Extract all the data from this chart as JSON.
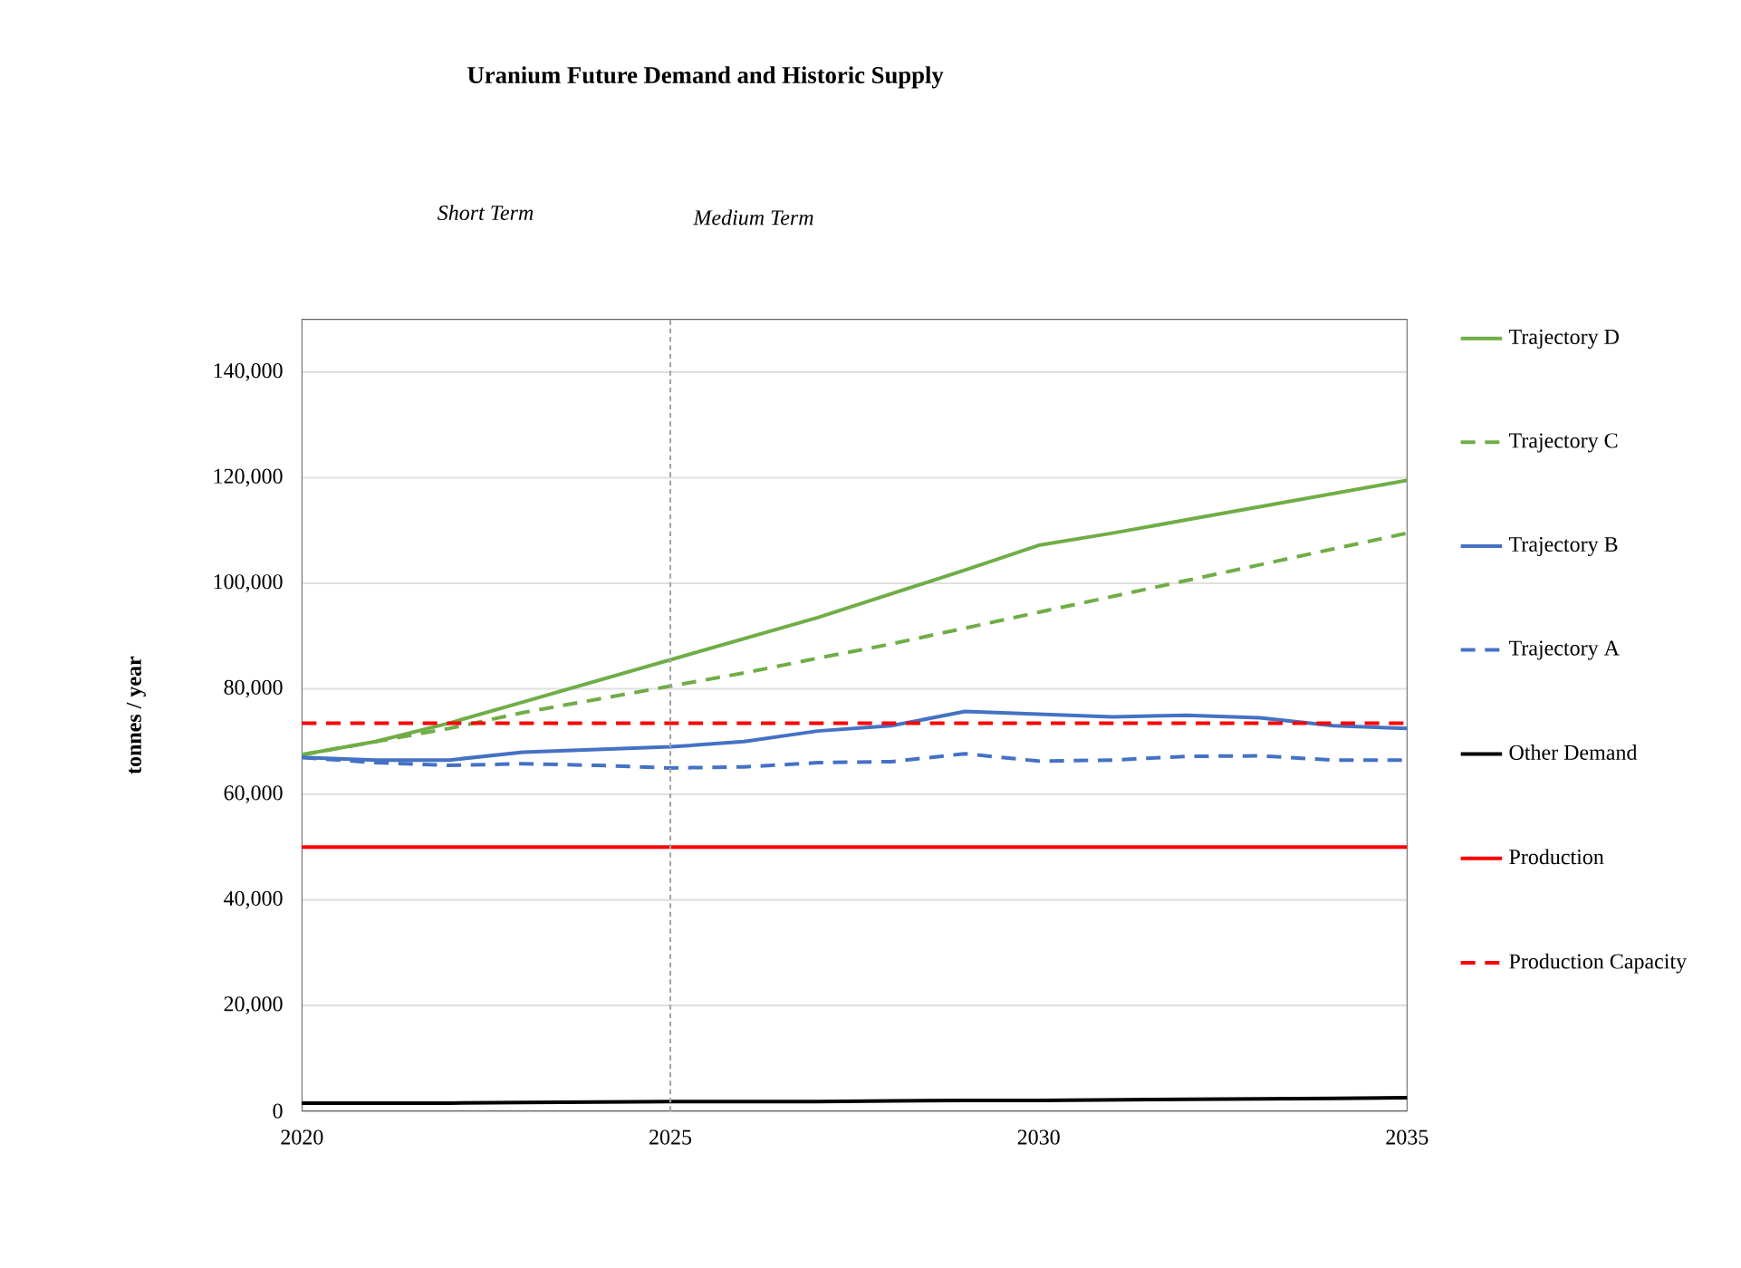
{
  "chart_data": {
    "type": "line",
    "title": "Uranium Future Demand and Historic Supply",
    "ylabel": "tonnes / year",
    "annotations": [
      "Short Term",
      "Medium Term"
    ],
    "x": [
      2020,
      2021,
      2022,
      2023,
      2024,
      2025,
      2026,
      2027,
      2028,
      2029,
      2030,
      2031,
      2032,
      2033,
      2034,
      2035
    ],
    "series": [
      {
        "name": "Trajectory D",
        "color": "#70ad47",
        "line_style": "solid",
        "values": [
          67500,
          70000,
          73500,
          77500,
          81500,
          85500,
          89500,
          93500,
          98000,
          102500,
          107200,
          109500,
          112000,
          114500,
          117000,
          119500
        ]
      },
      {
        "name": "Trajectory C",
        "color": "#70ad47",
        "line_style": "dashed",
        "values": [
          67500,
          70000,
          72500,
          75500,
          78000,
          80500,
          83000,
          85800,
          88500,
          91500,
          94500,
          97500,
          100500,
          103500,
          106500,
          109500
        ]
      },
      {
        "name": "Trajectory B",
        "color": "#4472c4",
        "line_style": "solid",
        "values": [
          67000,
          66500,
          66500,
          68000,
          68500,
          69000,
          70000,
          72000,
          73000,
          75700,
          75200,
          74700,
          75000,
          74500,
          73000,
          72500
        ]
      },
      {
        "name": "Trajectory A",
        "color": "#4472c4",
        "line_style": "dashed",
        "values": [
          67000,
          66000,
          65500,
          65800,
          65500,
          65000,
          65200,
          66000,
          66200,
          67700,
          66300,
          66500,
          67200,
          67300,
          66500,
          66500
        ]
      },
      {
        "name": "Other Demand",
        "color": "#000000",
        "line_style": "solid",
        "values": [
          1500,
          1500,
          1500,
          1600,
          1700,
          1800,
          1800,
          1800,
          1900,
          2000,
          2000,
          2100,
          2200,
          2300,
          2400,
          2500
        ]
      },
      {
        "name": "Production",
        "color": "#ff0000",
        "line_style": "solid",
        "values": [
          50000,
          50000,
          50000,
          50000,
          50000,
          50000,
          50000,
          50000,
          50000,
          50000,
          50000,
          50000,
          50000,
          50000,
          50000,
          50000
        ]
      },
      {
        "name": "Production Capacity",
        "color": "#ff0000",
        "line_style": "dashed",
        "values": [
          73500,
          73500,
          73500,
          73500,
          73500,
          73500,
          73500,
          73500,
          73500,
          73500,
          73500,
          73500,
          73500,
          73500,
          73500,
          73500
        ]
      }
    ],
    "xlim": [
      2020,
      2035
    ],
    "xticks": [
      2020,
      2025,
      2030,
      2035
    ],
    "ylim": [
      0,
      150000
    ],
    "yticks": [
      {
        "value": 0,
        "label": "0"
      },
      {
        "value": 20000,
        "label": "20,000"
      },
      {
        "value": 40000,
        "label": "40,000"
      },
      {
        "value": 60000,
        "label": "60,000"
      },
      {
        "value": 80000,
        "label": "80,000"
      },
      {
        "value": 100000,
        "label": "100,000"
      },
      {
        "value": 120000,
        "label": "120,000"
      },
      {
        "value": 140000,
        "label": "140,000"
      }
    ],
    "ref_lines": [
      {
        "axis": "x",
        "value": 2025,
        "color": "#a6a6a6",
        "line_style": "dashed"
      }
    ],
    "grid": "y",
    "legend": "right",
    "marker": "none"
  }
}
